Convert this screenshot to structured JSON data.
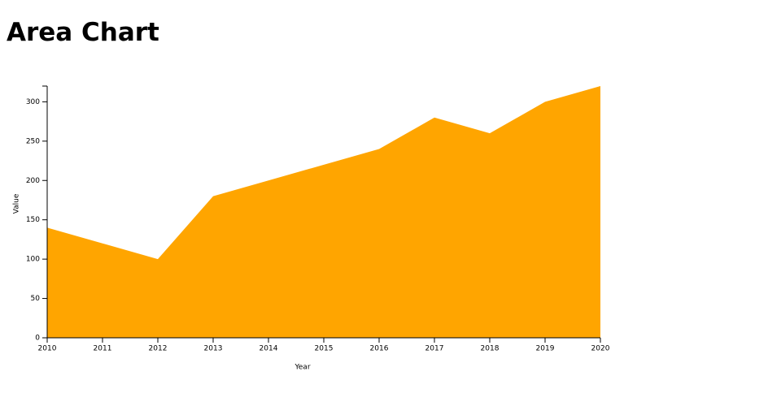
{
  "chart_data": {
    "type": "area",
    "title": "Area Chart",
    "x": [
      2010,
      2011,
      2012,
      2013,
      2014,
      2015,
      2016,
      2017,
      2018,
      2019,
      2020
    ],
    "values": [
      140,
      120,
      100,
      180,
      200,
      220,
      240,
      280,
      260,
      300,
      320
    ],
    "color": "#ffa500",
    "xlim": [
      2010,
      2020
    ],
    "xticks": [
      2010,
      2011,
      2012,
      2013,
      2014,
      2015,
      2016,
      2017,
      2018,
      2019,
      2020
    ],
    "ylim": [
      0,
      320
    ],
    "yticks": [
      0,
      50,
      100,
      150,
      200,
      250,
      300
    ],
    "x_label": "Year",
    "y_label": "Value"
  }
}
